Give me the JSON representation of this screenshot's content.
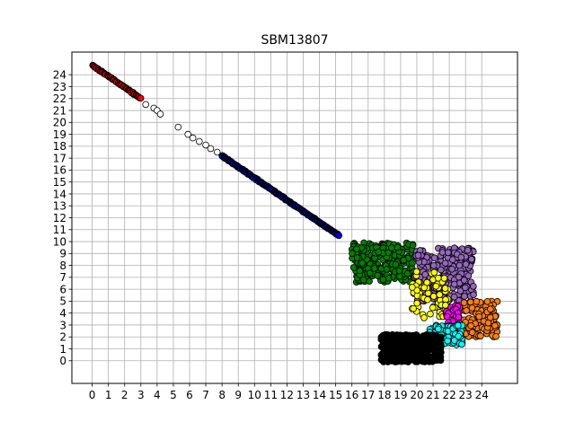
{
  "chart_data": {
    "type": "scatter",
    "title": "SBM13807",
    "xlabel": "",
    "ylabel": "",
    "x_ticks": [
      "0",
      "1",
      "2",
      "3",
      "4",
      "5",
      "6",
      "7",
      "8",
      "9",
      "10",
      "11",
      "12",
      "13",
      "14",
      "15",
      "16",
      "17",
      "18",
      "19",
      "20",
      "21",
      "22",
      "23",
      "24"
    ],
    "y_ticks": [
      "0",
      "1",
      "2",
      "3",
      "4",
      "5",
      "6",
      "7",
      "8",
      "9",
      "10",
      "11",
      "12",
      "13",
      "14",
      "15",
      "16",
      "17",
      "18",
      "19",
      "20",
      "21",
      "22",
      "23",
      "24"
    ],
    "xlim": [
      -1.25,
      26.2
    ],
    "ylim": [
      -1.9,
      25.9
    ],
    "grid": true,
    "marker": "circle, black edge",
    "clusters": [
      {
        "color": "#ff0000",
        "segments": [
          [
            0,
            24.8,
            3,
            22
          ]
        ],
        "n": 60
      },
      {
        "color": "#ffffff",
        "segments": [
          [
            3,
            22,
            8,
            17.2
          ]
        ],
        "points": [
          [
            3.3,
            21.5
          ],
          [
            3.8,
            21.2
          ],
          [
            4,
            21
          ],
          [
            4.2,
            20.7
          ],
          [
            5.3,
            19.6
          ],
          [
            5.9,
            19
          ],
          [
            6.2,
            18.7
          ],
          [
            6.6,
            18.4
          ],
          [
            7,
            18.1
          ],
          [
            7.3,
            17.8
          ],
          [
            7.7,
            17.5
          ]
        ]
      },
      {
        "color": "#0000ff",
        "segments": [
          [
            8,
            17.2,
            15.2,
            10.5
          ]
        ],
        "n": 200
      },
      {
        "color": "#008000",
        "region": [
          16,
          9.9,
          19.8,
          6.6
        ],
        "n": 260
      },
      {
        "color": "#9467bd",
        "region": [
          19.8,
          9.5,
          23.5,
          5
        ],
        "n": 260
      },
      {
        "color": "#ffff00",
        "region": [
          19.7,
          7.5,
          22,
          3.6
        ],
        "n": 70
      },
      {
        "color": "#ff00ff",
        "region": [
          21.8,
          4.7,
          22.8,
          3.2
        ],
        "n": 40
      },
      {
        "color": "#ff7f0e",
        "region": [
          22.8,
          5,
          25,
          2
        ],
        "n": 140
      },
      {
        "color": "#00ffff",
        "region": [
          20.8,
          3,
          22.8,
          1.3
        ],
        "n": 110
      },
      {
        "color": "#000000",
        "region": [
          17.8,
          2.2,
          21.5,
          -0.1
        ],
        "n": 420
      }
    ]
  }
}
